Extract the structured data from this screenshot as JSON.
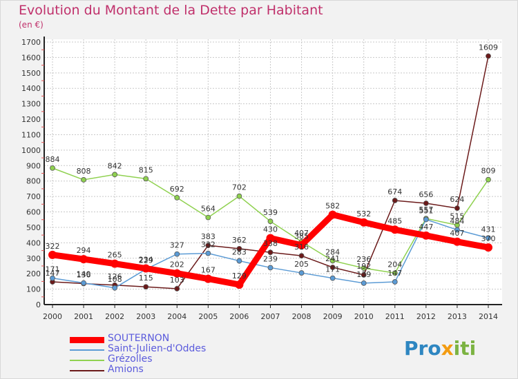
{
  "title": "Evolution du Montant de la Dette par Habitant",
  "unit_label": "(en €)",
  "logo_text": "Proxiti",
  "chart_data": {
    "type": "line",
    "title": "Evolution du Montant de la Dette par Habitant",
    "ylabel": "(en €)",
    "xlabel": "",
    "x": [
      "2000",
      "2001",
      "2002",
      "2003",
      "2004",
      "2005",
      "2006",
      "2007",
      "2008",
      "2009",
      "2010",
      "2011",
      "2012",
      "2013",
      "2014"
    ],
    "ylim": [
      0,
      1700
    ],
    "yticks": [
      0,
      100,
      200,
      300,
      400,
      500,
      600,
      700,
      800,
      900,
      1000,
      1100,
      1200,
      1300,
      1400,
      1500,
      1600,
      1700
    ],
    "grid": true,
    "legend_position": "bottom-left",
    "series": [
      {
        "name": "SOUTERNON",
        "color": "#ff0000",
        "values": [
          322,
          294,
          265,
          234,
          202,
          167,
          129,
          430,
          385,
          582,
          532,
          485,
          447,
          407,
          370
        ],
        "labels": [
          "322",
          "294",
          "265",
          "234",
          "202",
          "167",
          "129",
          "430",
          "385",
          "582",
          "532",
          "485",
          "447",
          "407",
          "370"
        ]
      },
      {
        "name": "Saint-Julien-d'Oddes",
        "color": "#5b9bd5",
        "values": [
          171,
          140,
          108,
          229,
          327,
          332,
          283,
          239,
          205,
          171,
          139,
          147,
          551,
          484,
          431
        ],
        "labels": [
          "171",
          "140",
          "108",
          "229",
          "327",
          "332",
          "283",
          "239",
          "205",
          "171",
          "139",
          "147",
          "551",
          "484",
          "431"
        ]
      },
      {
        "name": "Grézolles",
        "color": "#8fd14f",
        "values": [
          884,
          808,
          842,
          815,
          692,
          564,
          702,
          539,
          407,
          284,
          236,
          204,
          557,
          515,
          809
        ],
        "labels": [
          "884",
          "808",
          "842",
          "815",
          "692",
          "564",
          "702",
          "539",
          "407",
          "284",
          "236",
          "204",
          "557",
          "515",
          "809"
        ]
      },
      {
        "name": "Amions",
        "color": "#6b1a1a",
        "values": [
          147,
          136,
          126,
          115,
          103,
          383,
          362,
          338,
          316,
          241,
          192,
          674,
          656,
          624,
          1609
        ],
        "labels": [
          "147",
          "136",
          "126",
          "115",
          "103",
          "383",
          "362",
          "338",
          "316",
          "241",
          "192",
          "674",
          "656",
          "624",
          "1609"
        ]
      }
    ]
  }
}
